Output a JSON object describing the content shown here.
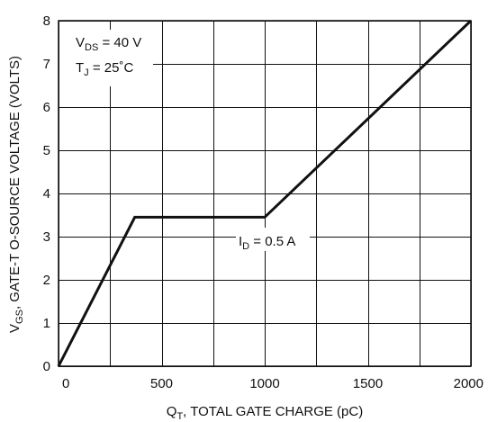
{
  "chart_data": {
    "type": "line",
    "x_label_main": "Q",
    "x_label_sub": "T",
    "x_label_rest": ", TOTAL GATE CHARGE (pC)",
    "y_label_main": "V",
    "y_label_sub": "GS",
    "y_label_rest": ", GATE-T O-SOURCE VOLTAGE (VOLTS)",
    "xlim": [
      0,
      2000
    ],
    "ylim": [
      0,
      8
    ],
    "x_ticks": [
      0,
      500,
      1000,
      1500,
      2000
    ],
    "y_ticks": [
      0,
      1,
      2,
      3,
      4,
      5,
      6,
      7,
      8
    ],
    "x_gridlines": [
      0,
      250,
      500,
      750,
      1000,
      1250,
      1500,
      1750,
      2000
    ],
    "y_gridlines": [
      0,
      1,
      2,
      3,
      4,
      5,
      6,
      7,
      8
    ],
    "grid": true,
    "series": [
      {
        "x": [
          0,
          370,
          1000,
          2000
        ],
        "y": [
          0,
          3.45,
          3.45,
          8.0
        ]
      }
    ],
    "annotations": {
      "vds": {
        "main": "V",
        "sub": "DS",
        "rest": " = 40 V"
      },
      "tj": {
        "main": "T",
        "sub": "J",
        "rest": " = 25˚C"
      },
      "id": {
        "main": "I",
        "sub": "D",
        "rest": " = 0.5 A"
      }
    }
  }
}
